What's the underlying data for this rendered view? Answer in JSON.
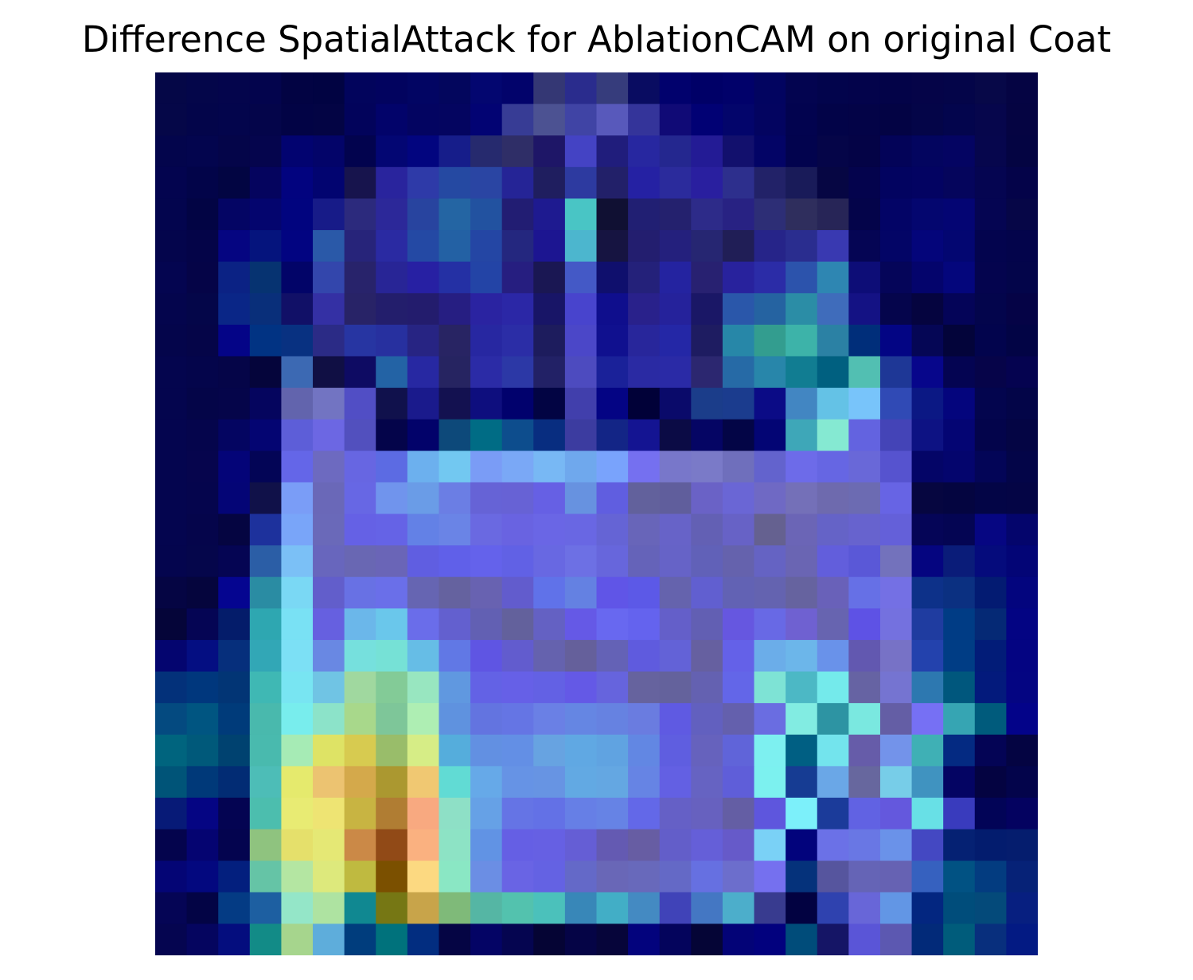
{
  "chart_data": {
    "type": "heatmap",
    "title": "Difference SpatialAttack for AblationCAM on original Coat",
    "xlabel": "",
    "ylabel": "",
    "axes_visible": false,
    "grid": false,
    "legend": "none",
    "rows": 28,
    "cols": 28,
    "colors": [
      [
        "#050747",
        "#04064a",
        "#04054c",
        "#03044d",
        "#020343",
        "#010342",
        "#02045c",
        "#02035f",
        "#020563",
        "#03065d",
        "#030670",
        "#02036b",
        "#343774",
        "#2a2c8d",
        "#363c7c",
        "#090c61",
        "#01016d",
        "#000067",
        "#01016a",
        "#020460",
        "#030450",
        "#02044c",
        "#03034b",
        "#030348",
        "#050448",
        "#040549",
        "#070848",
        "#050443"
      ],
      [
        "#050748",
        "#03054a",
        "#03054c",
        "#04054a",
        "#020345",
        "#030444",
        "#02035b",
        "#02036a",
        "#030461",
        "#040560",
        "#020373",
        "#373c95",
        "#4c5292",
        "#4044a5",
        "#5859bb",
        "#34349a",
        "#100a76",
        "#010174",
        "#03056b",
        "#030460",
        "#02034f",
        "#020348",
        "#030347",
        "#030344",
        "#040548",
        "#03054d",
        "#06064c",
        "#050442"
      ],
      [
        "#03054c",
        "#03054e",
        "#040549",
        "#05054d",
        "#020370",
        "#030469",
        "#02034e",
        "#030673",
        "#02057f",
        "#161d8a",
        "#262a6e",
        "#2f2e67",
        "#1e1667",
        "#4443c4",
        "#201d7c",
        "#2727a0",
        "#24278f",
        "#231b95",
        "#12106d",
        "#030466",
        "#02034e",
        "#050548",
        "#040346",
        "#030358",
        "#03055f",
        "#040462",
        "#06064d",
        "#040442"
      ],
      [
        "#03044f",
        "#020449",
        "#020542",
        "#05045e",
        "#02037f",
        "#020470",
        "#17144d",
        "#29249d",
        "#2e3aa8",
        "#2549a2",
        "#2a45a3",
        "#252496",
        "#1f1e5f",
        "#2d3aa0",
        "#222069",
        "#2521a3",
        "#2b2b9c",
        "#291f9f",
        "#2d2f8d",
        "#222268",
        "#191b59",
        "#060643",
        "#04034d",
        "#020360",
        "#030362",
        "#05055c",
        "#050551",
        "#040349"
      ],
      [
        "#03054e",
        "#020444",
        "#040564",
        "#04056e",
        "#01047f",
        "#171b88",
        "#2c2a7d",
        "#2c2899",
        "#28449f",
        "#2465a3",
        "#2252a0",
        "#221d73",
        "#1e1a90",
        "#49c5c5",
        "#101033",
        "#211f73",
        "#24216e",
        "#2d2b89",
        "#282283",
        "#2d2e76",
        "#2f2e5d",
        "#272557",
        "#04044a",
        "#030466",
        "#04066f",
        "#040573",
        "#050552",
        "#060647"
      ],
      [
        "#04054c",
        "#040448",
        "#050581",
        "#05147d",
        "#020481",
        "#2a59a8",
        "#27247a",
        "#2a2aa2",
        "#2449a4",
        "#2361a4",
        "#2446a4",
        "#24277f",
        "#1c1591",
        "#4cb6ce",
        "#161441",
        "#231e6f",
        "#24207d",
        "#262672",
        "#201e56",
        "#262489",
        "#2a2d8f",
        "#3939b1",
        "#050554",
        "#030566",
        "#04057a",
        "#030671",
        "#03044e",
        "#03044b"
      ],
      [
        "#040550",
        "#050447",
        "#0b2284",
        "#063371",
        "#020468",
        "#3346ac",
        "#28236b",
        "#282596",
        "#2720a3",
        "#2430a4",
        "#2344a6",
        "#261e80",
        "#1a1753",
        "#4459c6",
        "#0f0f6d",
        "#24217a",
        "#2423a0",
        "#282171",
        "#28229d",
        "#2b2ca7",
        "#2c53ac",
        "#2e86b2",
        "#0d0d77",
        "#050559",
        "#04046c",
        "#04067c",
        "#04044e",
        "#03054a"
      ],
      [
        "#04054d",
        "#040649",
        "#0a2687",
        "#092f7a",
        "#111067",
        "#3430a4",
        "#282367",
        "#231e6c",
        "#231c6d",
        "#261e82",
        "#2a23a1",
        "#2b27a6",
        "#181567",
        "#4844cd",
        "#0f0e8d",
        "#29218b",
        "#25229b",
        "#1a1766",
        "#2a57aa",
        "#2563a1",
        "#2b8da6",
        "#3f6cbb",
        "#141284",
        "#05054c",
        "#05043f",
        "#040458",
        "#03054c",
        "#050346"
      ],
      [
        "#04054b",
        "#050548",
        "#040487",
        "#013383",
        "#083181",
        "#2b2b86",
        "#2735a2",
        "#27309f",
        "#272483",
        "#282463",
        "#2727a1",
        "#2b2da6",
        "#1d1c5d",
        "#4b47c8",
        "#10108f",
        "#28269b",
        "#2427a6",
        "#1e1c61",
        "#2787a8",
        "#339d8f",
        "#3db3a9",
        "#2b81a4",
        "#002e7a",
        "#030584",
        "#050655",
        "#03043a",
        "#02044d",
        "#020445"
      ],
      [
        "#04054e",
        "#04054b",
        "#050548",
        "#05053b",
        "#3c69b3",
        "#100f44",
        "#0e0b63",
        "#2363a5",
        "#2728a2",
        "#262461",
        "#2b2ba6",
        "#2c38a6",
        "#222166",
        "#4d4bbf",
        "#1a2199",
        "#2a2aa3",
        "#2a2aa6",
        "#2c2770",
        "#266aa6",
        "#2886aa",
        "#117d92",
        "#006080",
        "#52bfb2",
        "#1e3796",
        "#07068b",
        "#040452",
        "#060449",
        "#050350"
      ],
      [
        "#04054e",
        "#040548",
        "#05054a",
        "#05055e",
        "#6264ad",
        "#7274c2",
        "#514ec5",
        "#10114c",
        "#1a1a8c",
        "#131150",
        "#0e0e7e",
        "#01016d",
        "#020443",
        "#413fac",
        "#040484",
        "#010138",
        "#0a0a6a",
        "#1b3d8a",
        "#1b3c8e",
        "#0b0b86",
        "#4286c2",
        "#64c2e6",
        "#78c4fa",
        "#304ab5",
        "#0b1884",
        "#04057d",
        "#03054e",
        "#030548"
      ],
      [
        "#04054f",
        "#05054c",
        "#040561",
        "#040572",
        "#5d5ed8",
        "#6c67e3",
        "#5250be",
        "#04044a",
        "#02026a",
        "#0d497a",
        "#006c85",
        "#0d4d8d",
        "#082d80",
        "#3c3ca0",
        "#132586",
        "#141492",
        "#0b0b45",
        "#050564",
        "#030546",
        "#030574",
        "#3ea7b8",
        "#85e9d2",
        "#6363e0",
        "#4444b7",
        "#0d1283",
        "#040573",
        "#03044b",
        "#040544"
      ],
      [
        "#04054f",
        "#06054d",
        "#040478",
        "#030556",
        "#6466e8",
        "#6d6ac0",
        "#6766e2",
        "#5c6be3",
        "#6cb0ee",
        "#72c8f1",
        "#7a9cf6",
        "#7aa8f6",
        "#78b8f4",
        "#6fa8ed",
        "#79a3fc",
        "#7570f0",
        "#7877ca",
        "#7a7ac8",
        "#6f6fbc",
        "#6363cd",
        "#6d6be9",
        "#6666e3",
        "#6968d8",
        "#5653cf",
        "#040567",
        "#04056d",
        "#030557",
        "#030548"
      ],
      [
        "#04054f",
        "#05054d",
        "#040576",
        "#101149",
        "#7a9df7",
        "#6a68b8",
        "#6767e4",
        "#7094ed",
        "#6a9ce7",
        "#6b7ee4",
        "#6663d6",
        "#6762d5",
        "#6660e4",
        "#6792e0",
        "#605ee0",
        "#62619c",
        "#605e9c",
        "#6a62c6",
        "#6a66d5",
        "#6f69c4",
        "#7470b8",
        "#6e6aae",
        "#6c6bb2",
        "#6764e4",
        "#060640",
        "#040540",
        "#030546",
        "#040545"
      ],
      [
        "#04054f",
        "#05054b",
        "#050541",
        "#1d319c",
        "#79a5f9",
        "#6a69b9",
        "#6561e5",
        "#6563e6",
        "#6381e6",
        "#6a84e6",
        "#6a69e1",
        "#6963e1",
        "#6a66e5",
        "#6967e3",
        "#6564d5",
        "#6865b9",
        "#6763c8",
        "#6360b4",
        "#6762c6",
        "#656190",
        "#6b65b6",
        "#6563c7",
        "#6763ce",
        "#6460d9",
        "#050557",
        "#040553",
        "#060682",
        "#04056c"
      ],
      [
        "#04054e",
        "#05064b",
        "#050553",
        "#2b5ea6",
        "#7bc0f6",
        "#6866bd",
        "#6967b3",
        "#6a65b7",
        "#605ee1",
        "#6060e9",
        "#6462eb",
        "#6161e5",
        "#6868e2",
        "#6d70e4",
        "#6766dc",
        "#6563b9",
        "#6663c7",
        "#6161b8",
        "#6562ad",
        "#6563c3",
        "#6a65b3",
        "#625edc",
        "#5a58d7",
        "#7372bc",
        "#050580",
        "#0a1c79",
        "#050b7c",
        "#030576"
      ],
      [
        "#050543",
        "#05053d",
        "#050590",
        "#2a8ca3",
        "#7ad8f4",
        "#625ecb",
        "#6871e4",
        "#6a6fe9",
        "#6665b2",
        "#65629f",
        "#6862b1",
        "#625ccd",
        "#6072e9",
        "#6481e2",
        "#6055e7",
        "#5c59e7",
        "#6563ad",
        "#615fd0",
        "#6262b4",
        "#6463b0",
        "#66639f",
        "#6961b9",
        "#6670e6",
        "#7470e4",
        "#0d3189",
        "#0b3081",
        "#031b72",
        "#03057e"
      ],
      [
        "#050539",
        "#050554",
        "#041c6a",
        "#2ea7b1",
        "#79e1f4",
        "#6660e0",
        "#6bb7ea",
        "#6ac7eb",
        "#6a6dea",
        "#6360cf",
        "#6260b3",
        "#63619c",
        "#6461c3",
        "#6559e6",
        "#6868f0",
        "#6463ee",
        "#645fc9",
        "#625fb3",
        "#6657e0",
        "#6869e5",
        "#6f61d1",
        "#6764b0",
        "#5e52e5",
        "#7471df",
        "#1f3ca0",
        "#003c85",
        "#052975",
        "#030483"
      ],
      [
        "#04056f",
        "#040e82",
        "#062f7c",
        "#32a7b6",
        "#7ce0f5",
        "#6988e3",
        "#76e0dd",
        "#76e1d6",
        "#66bde6",
        "#6178e5",
        "#5f55e3",
        "#625cce",
        "#6562ae",
        "#65609b",
        "#6462b6",
        "#5f5bde",
        "#6362d7",
        "#6660a0",
        "#6461e8",
        "#6bade9",
        "#6cb6ea",
        "#6992ea",
        "#6258b0",
        "#7772c6",
        "#2342ad",
        "#003d85",
        "#021c78",
        "#040482"
      ],
      [
        "#03317a",
        "#00377d",
        "#023575",
        "#3fb8b4",
        "#78e5f2",
        "#70c4e4",
        "#a0d89f",
        "#83cb97",
        "#98e6c0",
        "#6098e0",
        "#6362e5",
        "#6660e7",
        "#6361e4",
        "#6459e6",
        "#6664dd",
        "#66639e",
        "#64629c",
        "#6461b1",
        "#6366e8",
        "#7ee3d5",
        "#4cb8c5",
        "#74eaeb",
        "#6663a3",
        "#7574d1",
        "#2d78b0",
        "#00577d",
        "#031a7c",
        "#040582"
      ],
      [
        "#044a80",
        "#005581",
        "#003b7a",
        "#49b9ad",
        "#78eded",
        "#8ce3c9",
        "#a8d88b",
        "#7ec699",
        "#aeeeb3",
        "#5f92df",
        "#6374e0",
        "#6575e4",
        "#6a80e5",
        "#6586e3",
        "#6682e1",
        "#6a7ce0",
        "#5f5ae2",
        "#6260bf",
        "#6460ad",
        "#6a6de1",
        "#82ece2",
        "#2d94a3",
        "#7ae8e0",
        "#645ea5",
        "#7670f4",
        "#36a5b3",
        "#005b7c",
        "#030389"
      ],
      [
        "#00647e",
        "#00597a",
        "#004270",
        "#49baae",
        "#a6ebb5",
        "#dee365",
        "#d7cb50",
        "#99bd6a",
        "#d6ed86",
        "#55addc",
        "#6290e2",
        "#638fe5",
        "#67a3e1",
        "#60a8e3",
        "#60a3e1",
        "#6287e3",
        "#5f5ee0",
        "#6662bd",
        "#6064d9",
        "#7df0f0",
        "#005f83",
        "#73e4ed",
        "#665ca9",
        "#7393ea",
        "#3fb0b5",
        "#042a82",
        "#040455",
        "#040442"
      ],
      [
        "#005478",
        "#003979",
        "#022c74",
        "#4dbdb7",
        "#e5ea6d",
        "#ecc371",
        "#d4a94b",
        "#ab9830",
        "#f0c872",
        "#61dbd4",
        "#66a9e8",
        "#6693e5",
        "#6794e3",
        "#62a9e3",
        "#64a7e2",
        "#6684e4",
        "#6360e3",
        "#6663c2",
        "#5f5ed9",
        "#7cf1ef",
        "#163c93",
        "#6aa7e7",
        "#67679e",
        "#77cde8",
        "#4093c0",
        "#040463",
        "#040341",
        "#03044b"
      ],
      [
        "#071a77",
        "#050583",
        "#040452",
        "#4cbeae",
        "#e8eb73",
        "#eee473",
        "#c8b442",
        "#b07d33",
        "#f8a980",
        "#8ee0c6",
        "#66a1e6",
        "#6574e5",
        "#6371e6",
        "#667fe6",
        "#6683e5",
        "#6368e8",
        "#6560c6",
        "#6761bf",
        "#645ea4",
        "#5e56dd",
        "#7cf0fa",
        "#1b3b9a",
        "#6162e3",
        "#6458dd",
        "#68e0e6",
        "#393bbd",
        "#020457",
        "#040260"
      ],
      [
        "#04044d",
        "#050471",
        "#04044f",
        "#8fc37f",
        "#e5e06b",
        "#e5e875",
        "#cb8947",
        "#914a17",
        "#fab180",
        "#8de3c5",
        "#6193e4",
        "#655fe4",
        "#6660e3",
        "#655ed5",
        "#645ab2",
        "#675da3",
        "#635ec9",
        "#655fd8",
        "#665ac9",
        "#7ad1f6",
        "#02037c",
        "#6b71e7",
        "#6977e4",
        "#6a92e9",
        "#4448c2",
        "#052173",
        "#031c6e",
        "#051d6e"
      ],
      [
        "#040575",
        "#03087f",
        "#031f7e",
        "#65c4a6",
        "#b4e6a2",
        "#dde97c",
        "#bfba40",
        "#7b5000",
        "#fcd981",
        "#8ae7c4",
        "#6b8ee4",
        "#6964e4",
        "#6462e3",
        "#6469c8",
        "#6967b7",
        "#6869bb",
        "#6469c6",
        "#6670e1",
        "#6c6ecc",
        "#7570ef",
        "#05327b",
        "#56559e",
        "#6564b6",
        "#6662b3",
        "#3661bf",
        "#015283",
        "#033c80",
        "#062277"
      ],
      [
        "#050555",
        "#030445",
        "#043b84",
        "#1d5fa1",
        "#94e6c8",
        "#aee3a1",
        "#108891",
        "#767714",
        "#c8a44a",
        "#7fba79",
        "#55b6a4",
        "#53c2ae",
        "#4bc1bb",
        "#3887b8",
        "#42aec6",
        "#448ac2",
        "#4043b8",
        "#4477c3",
        "#4caecb",
        "#383b8f",
        "#020241",
        "#2f42af",
        "#6866d8",
        "#6296e5",
        "#032680",
        "#004d7b",
        "#044a7a",
        "#071f80"
      ],
      [
        "#050550",
        "#05055f",
        "#040d7e",
        "#128b87",
        "#a6d58d",
        "#5eaddb",
        "#003d7d",
        "#00727c",
        "#022d80",
        "#050544",
        "#040465",
        "#050550",
        "#050434",
        "#050446",
        "#06053a",
        "#03037d",
        "#04045c",
        "#050536",
        "#030377",
        "#02017e",
        "#004c7a",
        "#151566",
        "#5a55d7",
        "#5c58b1",
        "#022a79",
        "#005c7b",
        "#082f7d",
        "#031a83"
      ]
    ]
  }
}
